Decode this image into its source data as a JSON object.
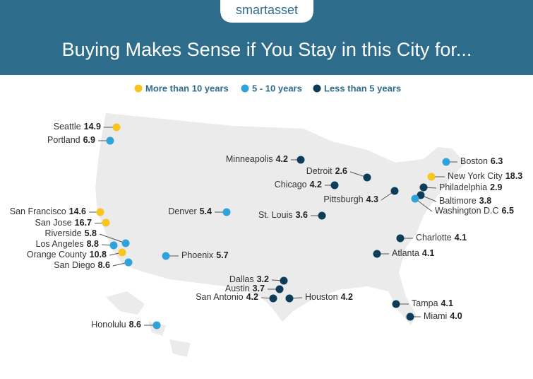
{
  "header": {
    "logo": "smartasset",
    "title": "Buying Makes Sense if You Stay in this City for..."
  },
  "legend": [
    {
      "label": "More than 10 years",
      "color": "#f7c51e"
    },
    {
      "label": "5 - 10 years",
      "color": "#2ea3da"
    },
    {
      "label": "Less than 5 years",
      "color": "#0e3d5a"
    }
  ],
  "cities": [
    {
      "name": "Seattle",
      "value": "14.9",
      "group": 0
    },
    {
      "name": "Portland",
      "value": "6.9",
      "group": 1
    },
    {
      "name": "Minneapolis",
      "value": "4.2",
      "group": 2
    },
    {
      "name": "Boston",
      "value": "6.3",
      "group": 1
    },
    {
      "name": "Detroit",
      "value": "2.6",
      "group": 2
    },
    {
      "name": "New York City",
      "value": "18.3",
      "group": 0
    },
    {
      "name": "Chicago",
      "value": "4.2",
      "group": 2
    },
    {
      "name": "Philadelphia",
      "value": "2.9",
      "group": 2
    },
    {
      "name": "Pittsburgh",
      "value": "4.3",
      "group": 2
    },
    {
      "name": "Baltimore",
      "value": "3.8",
      "group": 2
    },
    {
      "name": "Washington D.C",
      "value": "6.5",
      "group": 1
    },
    {
      "name": "Denver",
      "value": "5.4",
      "group": 1
    },
    {
      "name": "St. Louis",
      "value": "3.6",
      "group": 2
    },
    {
      "name": "San Francisco",
      "value": "14.6",
      "group": 0
    },
    {
      "name": "San Jose",
      "value": "16.7",
      "group": 0
    },
    {
      "name": "Riverside",
      "value": "5.8",
      "group": 1
    },
    {
      "name": "Los Angeles",
      "value": "8.8",
      "group": 1
    },
    {
      "name": "Orange County",
      "value": "10.8",
      "group": 0
    },
    {
      "name": "San Diego",
      "value": "8.6",
      "group": 1
    },
    {
      "name": "Phoenix",
      "value": "5.7",
      "group": 1
    },
    {
      "name": "Charlotte",
      "value": "4.1",
      "group": 2
    },
    {
      "name": "Atlanta",
      "value": "4.1",
      "group": 2
    },
    {
      "name": "Dallas",
      "value": "3.2",
      "group": 2
    },
    {
      "name": "Austin",
      "value": "3.7",
      "group": 2
    },
    {
      "name": "San Antonio",
      "value": "4.2",
      "group": 2
    },
    {
      "name": "Houston",
      "value": "4.2",
      "group": 2
    },
    {
      "name": "Tampa",
      "value": "4.1",
      "group": 2
    },
    {
      "name": "Miami",
      "value": "4.0",
      "group": 2
    },
    {
      "name": "Honolulu",
      "value": "8.6",
      "group": 1
    }
  ]
}
